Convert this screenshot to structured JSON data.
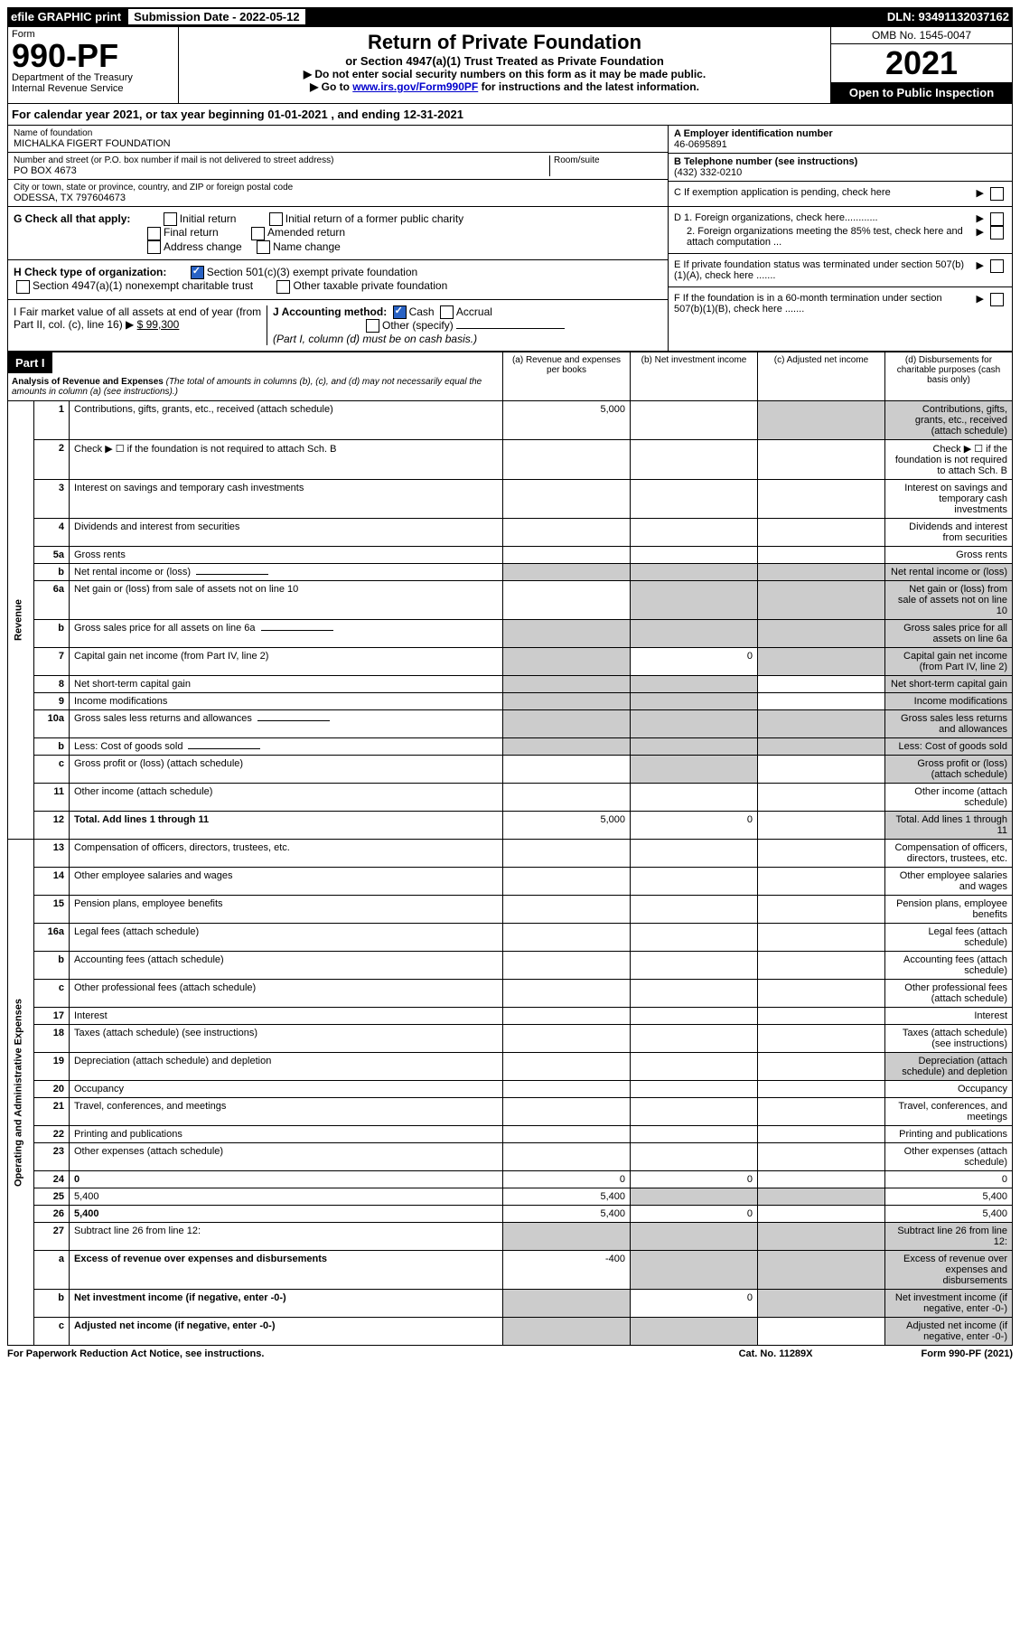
{
  "topbar": {
    "efile": "efile GRAPHIC print",
    "sub_label": "Submission Date - 2022-05-12",
    "dln": "DLN: 93491132037162"
  },
  "header": {
    "form_label": "Form",
    "form_number": "990-PF",
    "dept": "Department of the Treasury",
    "irs": "Internal Revenue Service",
    "title": "Return of Private Foundation",
    "subtitle": "or Section 4947(a)(1) Trust Treated as Private Foundation",
    "note1": "▶ Do not enter social security numbers on this form as it may be made public.",
    "note2_pre": "▶ Go to ",
    "note2_link": "www.irs.gov/Form990PF",
    "note2_post": " for instructions and the latest information.",
    "omb": "OMB No. 1545-0047",
    "year": "2021",
    "open": "Open to Public Inspection"
  },
  "calyear": "For calendar year 2021, or tax year beginning 01-01-2021             , and ending 12-31-2021",
  "name_block": {
    "name_label": "Name of foundation",
    "name": "MICHALKA FIGERT FOUNDATION",
    "addr_label": "Number and street (or P.O. box number if mail is not delivered to street address)",
    "addr": "PO BOX 4673",
    "room_label": "Room/suite",
    "city_label": "City or town, state or province, country, and ZIP or foreign postal code",
    "city": "ODESSA, TX  797604673"
  },
  "right_block": {
    "a_label": "A Employer identification number",
    "a_val": "46-0695891",
    "b_label": "B Telephone number (see instructions)",
    "b_val": "(432) 332-0210",
    "c_label": "C If exemption application is pending, check here",
    "d1": "D 1. Foreign organizations, check here............",
    "d2": "2. Foreign organizations meeting the 85% test, check here and attach computation ...",
    "e": "E  If private foundation status was terminated under section 507(b)(1)(A), check here .......",
    "f": "F  If the foundation is in a 60-month termination under section 507(b)(1)(B), check here ......."
  },
  "g_section": {
    "label": "G Check all that apply:",
    "opts": [
      "Initial return",
      "Initial return of a former public charity",
      "Final return",
      "Amended return",
      "Address change",
      "Name change"
    ]
  },
  "h_section": {
    "label": "H Check type of organization:",
    "opt1": "Section 501(c)(3) exempt private foundation",
    "opt2": "Section 4947(a)(1) nonexempt charitable trust",
    "opt3": "Other taxable private foundation"
  },
  "i_section": {
    "label": "I Fair market value of all assets at end of year (from Part II, col. (c), line 16)",
    "arrow": "▶",
    "val": "$  99,300"
  },
  "j_section": {
    "label": "J Accounting method:",
    "cash": "Cash",
    "accrual": "Accrual",
    "other": "Other (specify)",
    "note": "(Part I, column (d) must be on cash basis.)"
  },
  "part1": {
    "label": "Part I",
    "title": "Analysis of Revenue and Expenses",
    "title_note": " (The total of amounts in columns (b), (c), and (d) may not necessarily equal the amounts in column (a) (see instructions).)",
    "col_a": "(a)   Revenue and expenses per books",
    "col_b": "(b)   Net investment income",
    "col_c": "(c)   Adjusted net income",
    "col_d": "(d)  Disbursements for charitable purposes (cash basis only)"
  },
  "revenue_label": "Revenue",
  "expenses_label": "Operating and Administrative Expenses",
  "rows": [
    {
      "n": "1",
      "d": "Contributions, gifts, grants, etc., received (attach schedule)",
      "a": "5,000",
      "shade_b": false,
      "shade_c": true,
      "shade_d": true
    },
    {
      "n": "2",
      "d": "Check ▶ ☐ if the foundation is not required to attach Sch. B",
      "blank": true
    },
    {
      "n": "3",
      "d": "Interest on savings and temporary cash investments"
    },
    {
      "n": "4",
      "d": "Dividends and interest from securities"
    },
    {
      "n": "5a",
      "d": "Gross rents",
      "shade_c": false
    },
    {
      "n": "b",
      "d": "Net rental income or (loss)",
      "inline_box": true,
      "shade_all": true
    },
    {
      "n": "6a",
      "d": "Net gain or (loss) from sale of assets not on line 10",
      "shade_b": true,
      "shade_c": true,
      "shade_d": true
    },
    {
      "n": "b",
      "d": "Gross sales price for all assets on line 6a",
      "inline_box": true,
      "shade_all": true
    },
    {
      "n": "7",
      "d": "Capital gain net income (from Part IV, line 2)",
      "shade_a": true,
      "b": "0",
      "shade_c": true,
      "shade_d": true
    },
    {
      "n": "8",
      "d": "Net short-term capital gain",
      "shade_a": true,
      "shade_b": true,
      "shade_d": true
    },
    {
      "n": "9",
      "d": "Income modifications",
      "shade_a": true,
      "shade_b": true,
      "shade_d": true
    },
    {
      "n": "10a",
      "d": "Gross sales less returns and allowances",
      "inline_box": true,
      "shade_all": true
    },
    {
      "n": "b",
      "d": "Less: Cost of goods sold",
      "inline_box": true,
      "shade_all": true
    },
    {
      "n": "c",
      "d": "Gross profit or (loss) (attach schedule)",
      "shade_b": true,
      "shade_d": true
    },
    {
      "n": "11",
      "d": "Other income (attach schedule)"
    },
    {
      "n": "12",
      "d": "Total. Add lines 1 through 11",
      "bold": true,
      "a": "5,000",
      "b": "0",
      "shade_d": true
    }
  ],
  "exp_rows": [
    {
      "n": "13",
      "d": "Compensation of officers, directors, trustees, etc."
    },
    {
      "n": "14",
      "d": "Other employee salaries and wages"
    },
    {
      "n": "15",
      "d": "Pension plans, employee benefits"
    },
    {
      "n": "16a",
      "d": "Legal fees (attach schedule)"
    },
    {
      "n": "b",
      "d": "Accounting fees (attach schedule)"
    },
    {
      "n": "c",
      "d": "Other professional fees (attach schedule)"
    },
    {
      "n": "17",
      "d": "Interest"
    },
    {
      "n": "18",
      "d": "Taxes (attach schedule) (see instructions)"
    },
    {
      "n": "19",
      "d": "Depreciation (attach schedule) and depletion",
      "shade_d": true
    },
    {
      "n": "20",
      "d": "Occupancy"
    },
    {
      "n": "21",
      "d": "Travel, conferences, and meetings"
    },
    {
      "n": "22",
      "d": "Printing and publications"
    },
    {
      "n": "23",
      "d": "Other expenses (attach schedule)"
    },
    {
      "n": "24",
      "d": "0",
      "bold": true,
      "a": "0",
      "b": "0"
    },
    {
      "n": "25",
      "d": "5,400",
      "a": "5,400",
      "shade_b": true,
      "shade_c": true
    },
    {
      "n": "26",
      "d": "5,400",
      "bold": true,
      "a": "5,400",
      "b": "0"
    },
    {
      "n": "27",
      "d": "Subtract line 26 from line 12:",
      "shade_a": true,
      "shade_b": true,
      "shade_c": true,
      "shade_d": true
    },
    {
      "n": "a",
      "d": "Excess of revenue over expenses and disbursements",
      "bold": true,
      "a": "-400",
      "shade_b": true,
      "shade_c": true,
      "shade_d": true
    },
    {
      "n": "b",
      "d": "Net investment income (if negative, enter -0-)",
      "bold": true,
      "shade_a": true,
      "b": "0",
      "shade_c": true,
      "shade_d": true
    },
    {
      "n": "c",
      "d": "Adjusted net income (if negative, enter -0-)",
      "bold": true,
      "shade_a": true,
      "shade_b": true,
      "shade_d": true
    }
  ],
  "footer": {
    "left": "For Paperwork Reduction Act Notice, see instructions.",
    "mid": "Cat. No. 11289X",
    "right": "Form 990-PF (2021)"
  }
}
